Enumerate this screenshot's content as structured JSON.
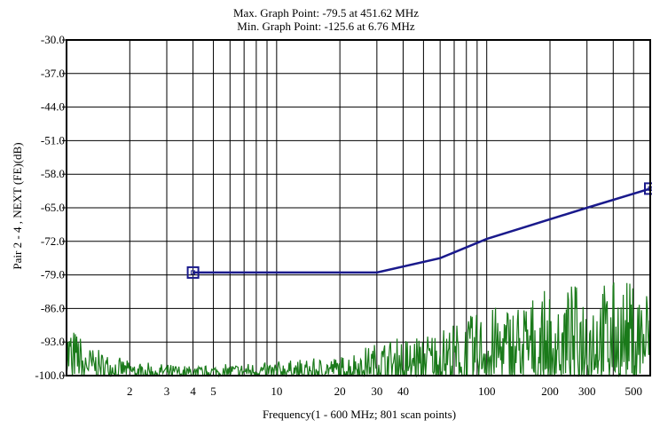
{
  "chart_data": {
    "type": "line",
    "title_lines": [
      "Max. Graph Point: -79.5 at 451.62 MHz",
      "Min. Graph Point: -125.6 at 6.76 MHz"
    ],
    "xlabel": "Frequency(1 - 600 MHz; 801 scan points)",
    "ylabel": "Pair 2 - 4 , NEXT (FE)(dB)",
    "x_scale": "log",
    "xlim": [
      1,
      600
    ],
    "ylim": [
      -100,
      -30
    ],
    "grid": true,
    "x_ticks": [
      {
        "value": 2,
        "label": "2"
      },
      {
        "value": 3,
        "label": "3"
      },
      {
        "value": 4,
        "label": "4"
      },
      {
        "value": 5,
        "label": "5"
      },
      {
        "value": 10,
        "label": "10"
      },
      {
        "value": 20,
        "label": "20"
      },
      {
        "value": 30,
        "label": "30"
      },
      {
        "value": 40,
        "label": "40"
      },
      {
        "value": 100,
        "label": "100"
      },
      {
        "value": 200,
        "label": "200"
      },
      {
        "value": 300,
        "label": "300"
      },
      {
        "value": 500,
        "label": "500"
      }
    ],
    "x_gridlines": [
      2,
      3,
      4,
      5,
      6,
      7,
      8,
      9,
      10,
      20,
      30,
      40,
      50,
      60,
      70,
      80,
      90,
      100,
      200,
      300,
      400,
      500
    ],
    "y_ticks": [
      "-30.0",
      "-37.0",
      "-44.0",
      "-51.0",
      "-58.0",
      "-65.0",
      "-72.0",
      "-79.0",
      "-86.0",
      "-93.0",
      "-100.0"
    ],
    "series": [
      {
        "role": "limit",
        "color": "#1a1a8c",
        "x": [
          4,
          30,
          60,
          100,
          300,
          600
        ],
        "y": [
          -78.5,
          -78.5,
          -75.5,
          -71.5,
          -65.0,
          -61.0
        ],
        "markers_at_x": [
          4,
          600
        ]
      },
      {
        "role": "measurement",
        "color": "#1a7a1a",
        "envelope_x": [
          1,
          1.3,
          2,
          4,
          10,
          20,
          30,
          60,
          100,
          200,
          300,
          600
        ],
        "envelope_y": [
          -88,
          -94,
          -97,
          -98,
          -97,
          -96,
          -93,
          -90,
          -86,
          -82,
          -80,
          -80
        ]
      }
    ]
  }
}
